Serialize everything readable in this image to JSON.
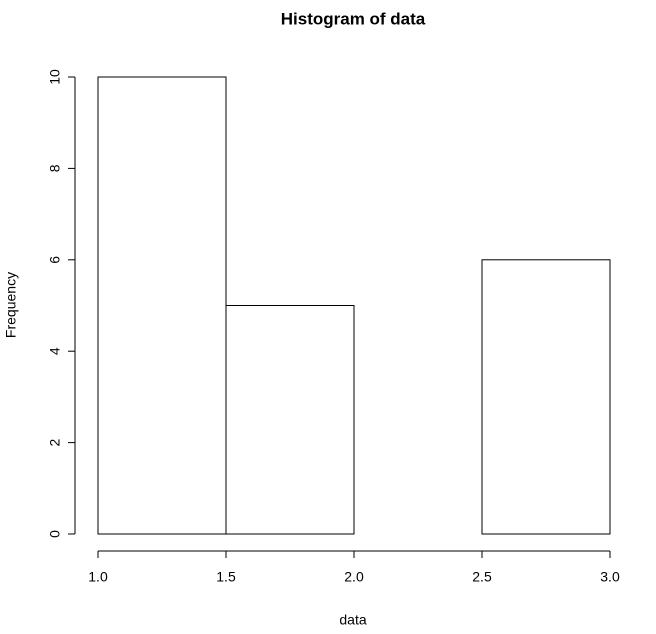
{
  "chart_data": {
    "type": "histogram",
    "title": "Histogram of data",
    "xlabel": "data",
    "ylabel": "Frequency",
    "bins": [
      1,
      1.5,
      2,
      2.5,
      3
    ],
    "values": [
      10,
      5,
      0,
      6
    ],
    "color": "#ffffff",
    "xlim": [
      1,
      3
    ],
    "xticks": [
      {
        "value": 1,
        "label": "1.0"
      },
      {
        "value": 1.5,
        "label": "1.5"
      },
      {
        "value": 2,
        "label": "2.0"
      },
      {
        "value": 2.5,
        "label": "2.5"
      },
      {
        "value": 3,
        "label": "3.0"
      }
    ],
    "ylim": [
      0,
      10
    ],
    "yticks": [
      0,
      2,
      4,
      6,
      8,
      10
    ]
  }
}
